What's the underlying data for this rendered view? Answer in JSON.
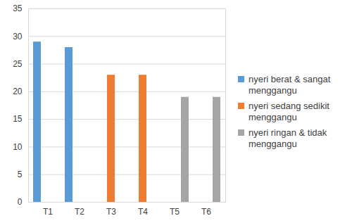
{
  "chart_data": {
    "type": "bar",
    "categories": [
      "T1",
      "T2",
      "T3",
      "T4",
      "T5",
      "T6"
    ],
    "series": [
      {
        "name": "nyeri berat & sangat menggangu",
        "color": "#5b9bd5",
        "values": [
          29,
          28,
          null,
          null,
          null,
          null
        ]
      },
      {
        "name": "nyeri sedang sedikit menggangu",
        "color": "#ed7d31",
        "values": [
          null,
          null,
          23,
          23,
          null,
          null
        ]
      },
      {
        "name": "nyeri ringan & tidak menggangu",
        "color": "#a5a5a5",
        "values": [
          null,
          null,
          null,
          null,
          19,
          19
        ]
      }
    ],
    "ylim": [
      0,
      35
    ],
    "yticks": [
      0,
      5,
      10,
      15,
      20,
      25,
      30,
      35
    ],
    "grid": true,
    "legend": "right"
  }
}
